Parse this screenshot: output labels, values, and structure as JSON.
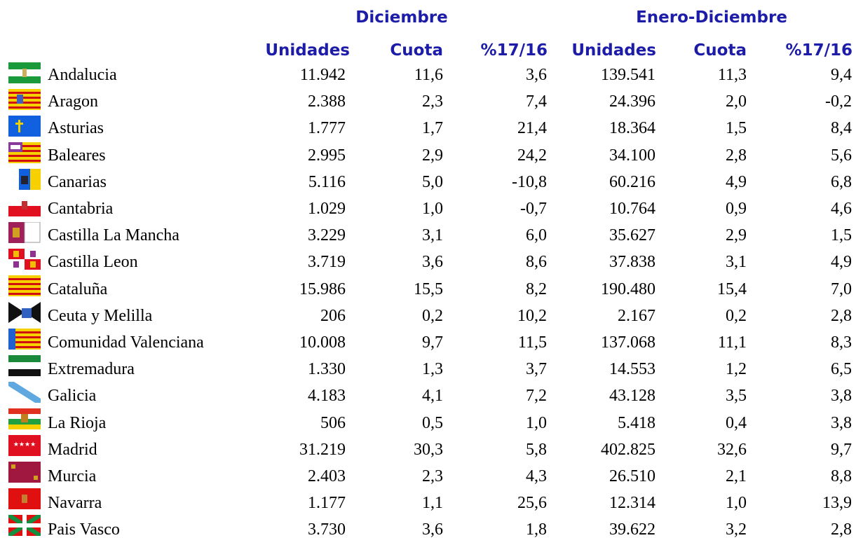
{
  "header": {
    "groups": [
      "Diciembre",
      "Enero-Diciembre"
    ],
    "columns": [
      "Unidades",
      "Cuota",
      "%17/16",
      "Unidades",
      "Cuota",
      "%17/16"
    ]
  },
  "table": {
    "rows": [
      [
        "Andalucia",
        "11.942",
        "11,6",
        "3,6",
        "139.541",
        "11,3",
        "9,4"
      ],
      [
        "Aragon",
        "2.388",
        "2,3",
        "7,4",
        "24.396",
        "2,0",
        "-0,2"
      ],
      [
        "Asturias",
        "1.777",
        "1,7",
        "21,4",
        "18.364",
        "1,5",
        "8,4"
      ],
      [
        "Baleares",
        "2.995",
        "2,9",
        "24,2",
        "34.100",
        "2,8",
        "5,6"
      ],
      [
        "Canarias",
        "5.116",
        "5,0",
        "-10,8",
        "60.216",
        "4,9",
        "6,8"
      ],
      [
        "Cantabria",
        "1.029",
        "1,0",
        "-0,7",
        "10.764",
        "0,9",
        "4,6"
      ],
      [
        "Castilla La Mancha",
        "3.229",
        "3,1",
        "6,0",
        "35.627",
        "2,9",
        "1,5"
      ],
      [
        "Castilla Leon",
        "3.719",
        "3,6",
        "8,6",
        "37.838",
        "3,1",
        "4,9"
      ],
      [
        "Cataluña",
        "15.986",
        "15,5",
        "8,2",
        "190.480",
        "15,4",
        "7,0"
      ],
      [
        "Ceuta y Melilla",
        "206",
        "0,2",
        "10,2",
        "2.167",
        "0,2",
        "2,8"
      ],
      [
        "Comunidad Valenciana",
        "10.008",
        "9,7",
        "11,5",
        "137.068",
        "11,1",
        "8,3"
      ],
      [
        "Extremadura",
        "1.330",
        "1,3",
        "3,7",
        "14.553",
        "1,2",
        "6,5"
      ],
      [
        "Galicia",
        "4.183",
        "4,1",
        "7,2",
        "43.128",
        "3,5",
        "3,8"
      ],
      [
        "La Rioja",
        "506",
        "0,5",
        "1,0",
        "5.418",
        "0,4",
        "3,8"
      ],
      [
        "Madrid",
        "31.219",
        "30,3",
        "5,8",
        "402.825",
        "32,6",
        "9,7"
      ],
      [
        "Murcia",
        "2.403",
        "2,3",
        "4,3",
        "26.510",
        "2,1",
        "8,8"
      ],
      [
        "Navarra",
        "1.177",
        "1,1",
        "25,6",
        "12.314",
        "1,0",
        "13,9"
      ],
      [
        "Pais Vasco",
        "3.730",
        "3,6",
        "1,8",
        "39.622",
        "3,2",
        "2,8"
      ]
    ]
  }
}
